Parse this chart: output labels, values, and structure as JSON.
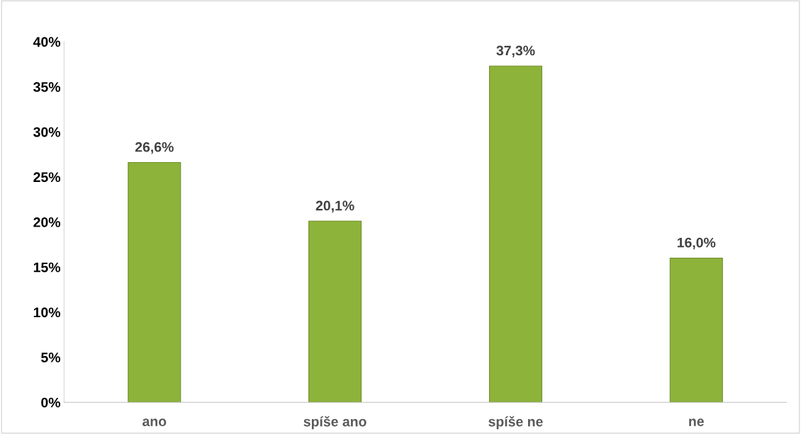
{
  "chart_data": {
    "type": "bar",
    "categories": [
      "ano",
      "spíše ano",
      "spíše ne",
      "ne"
    ],
    "values": [
      26.6,
      20.1,
      37.3,
      16.0
    ],
    "value_labels": [
      "26,6%",
      "20,1%",
      "37,3%",
      "16,0%"
    ],
    "color": "#8db33a",
    "ylim": [
      0,
      40
    ],
    "yticks": [
      {
        "value": 0,
        "label": "0%"
      },
      {
        "value": 5,
        "label": "5%"
      },
      {
        "value": 10,
        "label": "10%"
      },
      {
        "value": 15,
        "label": "15%"
      },
      {
        "value": 20,
        "label": "20%"
      },
      {
        "value": 25,
        "label": "25%"
      },
      {
        "value": 30,
        "label": "30%"
      },
      {
        "value": 35,
        "label": "35%"
      },
      {
        "value": 40,
        "label": "40%"
      }
    ],
    "grid": false,
    "legend": false
  }
}
